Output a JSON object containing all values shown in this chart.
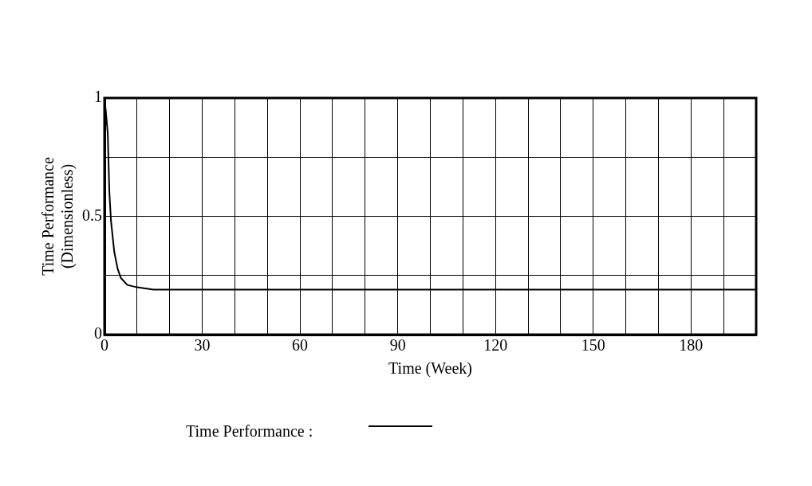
{
  "chart_data": {
    "type": "line",
    "xlabel": "Time (Week)",
    "ylabel": "Time Performance\n(Dimensionless)",
    "x": [
      0,
      0.5,
      1,
      1.5,
      2,
      3,
      4,
      5,
      7,
      10,
      15,
      30,
      60,
      100,
      150,
      200
    ],
    "series": [
      {
        "name": "Time Performance :",
        "color": "#000000",
        "values": [
          1,
          0.93,
          0.85,
          0.6,
          0.48,
          0.35,
          0.28,
          0.24,
          0.21,
          0.2,
          0.19,
          0.19,
          0.19,
          0.19,
          0.19,
          0.19
        ]
      }
    ],
    "xlim": [
      0,
      200
    ],
    "xticks": [
      0,
      {
        "value": 10,
        "label": null
      },
      30,
      {
        "value": 20,
        "label": null
      },
      {
        "value": 40,
        "label": null
      },
      {
        "value": 50,
        "label": null
      },
      60,
      {
        "value": 70,
        "label": null
      },
      {
        "value": 80,
        "label": null
      },
      90,
      {
        "value": 100,
        "label": null
      },
      {
        "value": 110,
        "label": null
      },
      120,
      {
        "value": 130,
        "label": null
      },
      {
        "value": 140,
        "label": null
      },
      150,
      {
        "value": 160,
        "label": null
      },
      {
        "value": 170,
        "label": null
      },
      180,
      {
        "value": 190,
        "label": null
      },
      {
        "value": 200,
        "label": null
      }
    ],
    "ylim": [
      0,
      1
    ],
    "yticks": [
      0,
      {
        "value": 0.25,
        "label": null
      },
      0.5,
      {
        "value": 0.75,
        "label": null
      },
      1
    ],
    "grid": true,
    "legend": "bottom",
    "marker": "none",
    "line_style": "solid"
  }
}
